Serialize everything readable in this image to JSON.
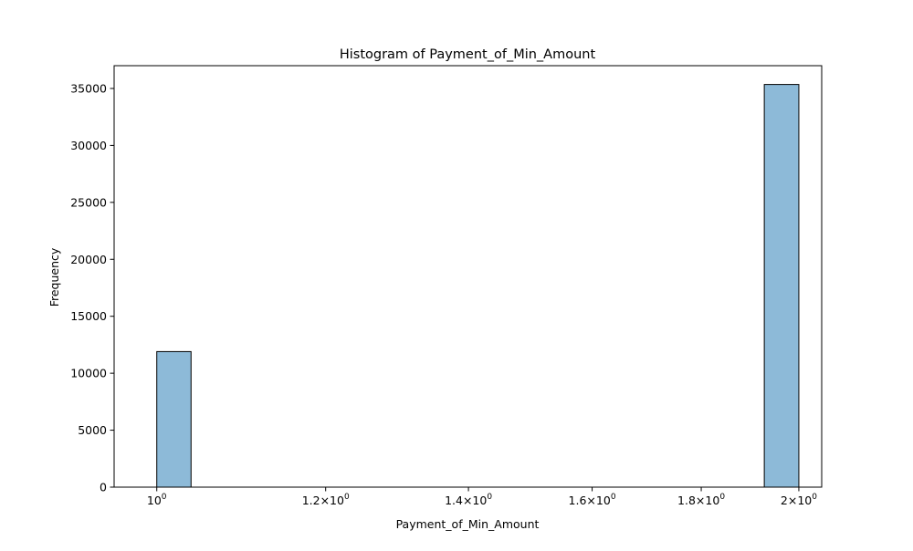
{
  "chart_data": {
    "type": "bar",
    "title": "Histogram of Payment_of_Min_Amount",
    "xlabel": "Payment_of_Min_Amount",
    "ylabel": "Frequency",
    "x_scale": "log",
    "xlim": [
      0.955,
      2.05
    ],
    "ylim": [
      0,
      37000
    ],
    "grid": false,
    "bars": [
      {
        "x_start": 1.0,
        "x_end": 1.0377,
        "value": 11900
      },
      {
        "x_start": 1.9268,
        "x_end": 2.0,
        "value": 35350
      }
    ],
    "x_ticks": [
      {
        "value": 1.0,
        "mantissa": "",
        "base": "10",
        "exponent": "0"
      },
      {
        "value": 1.2,
        "mantissa": "1.2×",
        "base": "10",
        "exponent": "0"
      },
      {
        "value": 1.4,
        "mantissa": "1.4×",
        "base": "10",
        "exponent": "0"
      },
      {
        "value": 1.6,
        "mantissa": "1.6×",
        "base": "10",
        "exponent": "0"
      },
      {
        "value": 1.8,
        "mantissa": "1.8×",
        "base": "10",
        "exponent": "0"
      },
      {
        "value": 2.0,
        "mantissa": "2×",
        "base": "10",
        "exponent": "0"
      }
    ],
    "y_ticks": [
      0,
      5000,
      10000,
      15000,
      20000,
      25000,
      30000,
      35000
    ],
    "colors": {
      "bar_fill": "#8dbad8",
      "bar_edge": "#000000",
      "axis": "#000000"
    }
  }
}
